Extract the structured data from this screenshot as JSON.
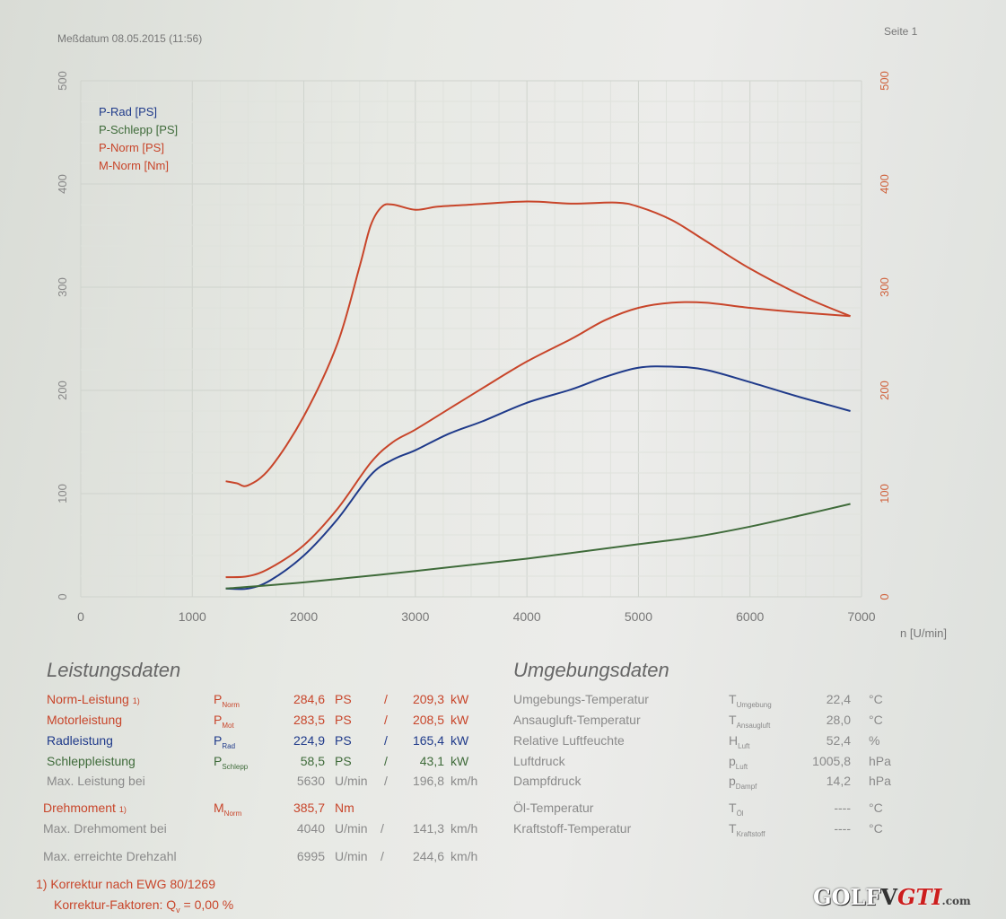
{
  "header": {
    "date_text": "Meßdatum  08.05.2015 (11:56)",
    "page_text": "Seite 1"
  },
  "chart_data": {
    "type": "line",
    "xlabel": "n [U/min]",
    "xlim": [
      0,
      7000
    ],
    "ylim_left": [
      0,
      500
    ],
    "ylim_right": [
      0,
      500
    ],
    "x_ticks": [
      0,
      1000,
      2000,
      3000,
      4000,
      5000,
      6000,
      7000
    ],
    "y_ticks_left": [
      0,
      100,
      200,
      300,
      400,
      500
    ],
    "y_ticks_right": [
      0,
      100,
      200,
      300,
      400,
      500
    ],
    "legend_position": "top-left",
    "series": [
      {
        "name": "P-Rad [PS]",
        "color": "#1f3a8a",
        "x": [
          1300,
          1500,
          1700,
          2000,
          2300,
          2600,
          2800,
          3000,
          3300,
          3600,
          4000,
          4400,
          4700,
          5000,
          5300,
          5600,
          6000,
          6400,
          6700,
          6900
        ],
        "y": [
          8,
          8,
          16,
          40,
          75,
          118,
          133,
          142,
          158,
          170,
          188,
          201,
          213,
          222,
          223,
          220,
          208,
          195,
          186,
          180
        ]
      },
      {
        "name": "P-Schlepp [PS]",
        "color": "#3f6b3a",
        "x": [
          1300,
          2000,
          3000,
          4000,
          5000,
          5500,
          6000,
          6500,
          6900
        ],
        "y": [
          8,
          14,
          25,
          37,
          51,
          58,
          68,
          80,
          90
        ]
      },
      {
        "name": "P-Norm [PS]",
        "color": "#c8452a",
        "x": [
          1300,
          1500,
          1700,
          2000,
          2300,
          2600,
          2800,
          3000,
          3300,
          3600,
          4000,
          4400,
          4700,
          5000,
          5300,
          5600,
          6000,
          6400,
          6900
        ],
        "y": [
          19,
          20,
          28,
          50,
          85,
          130,
          150,
          162,
          182,
          202,
          228,
          250,
          268,
          280,
          285,
          285,
          280,
          276,
          272
        ]
      },
      {
        "name": "M-Norm [Nm]",
        "color": "#c8452a",
        "x": [
          1300,
          1400,
          1500,
          1700,
          2000,
          2300,
          2500,
          2600,
          2700,
          2800,
          3000,
          3200,
          3500,
          4000,
          4400,
          4800,
          5000,
          5300,
          5600,
          6000,
          6500,
          6900
        ],
        "y": [
          112,
          110,
          108,
          125,
          175,
          245,
          320,
          360,
          378,
          380,
          375,
          378,
          380,
          383,
          381,
          382,
          378,
          365,
          345,
          318,
          290,
          272
        ]
      }
    ]
  },
  "leistung": {
    "title": "Leistungsdaten",
    "rows": [
      {
        "label": "Norm-Leistung",
        "note": "1)",
        "sym": "P",
        "sub": "Norm",
        "v1": "284,6",
        "u1": "PS",
        "sep": "/",
        "v2": "209,3",
        "u2": "kW"
      },
      {
        "label": "Motorleistung",
        "sym": "P",
        "sub": "Mot",
        "v1": "283,5",
        "u1": "PS",
        "sep": "/",
        "v2": "208,5",
        "u2": "kW"
      },
      {
        "label": "Radleistung",
        "sym": "P",
        "sub": "Rad",
        "v1": "224,9",
        "u1": "PS",
        "sep": "/",
        "v2": "165,4",
        "u2": "kW"
      },
      {
        "label": "Schleppleistung",
        "sym": "P",
        "sub": "Schlepp",
        "v1": "58,5",
        "u1": "PS",
        "sep": "/",
        "v2": "43,1",
        "u2": "kW"
      },
      {
        "label": "Max. Leistung bei",
        "v1": "5630",
        "u1": "U/min",
        "sep": "/",
        "v2": "196,8",
        "u2": "km/h"
      }
    ],
    "torque": {
      "label": "Drehmoment",
      "note": "1)",
      "sym": "M",
      "sub": "Norm",
      "v1": "385,7",
      "u1": "Nm"
    },
    "maxtorque": {
      "label": "Max. Drehmoment bei",
      "v1": "4040",
      "u1": "U/min",
      "sep": "/",
      "v2": "141,3",
      "u2": "km/h"
    },
    "maxrpm": {
      "label": "Max. erreichte Drehzahl",
      "v1": "6995",
      "u1": "U/min",
      "sep": "/",
      "v2": "244,6",
      "u2": "km/h"
    },
    "footnote1": "1) Korrektur nach EWG 80/1269",
    "footnote2_label": "Korrektur-Faktoren:",
    "footnote2_sym": "Q",
    "footnote2_sub": "v",
    "footnote2_value": "=   0,00 %"
  },
  "umgebung": {
    "title": "Umgebungsdaten",
    "rows": [
      {
        "label": "Umgebungs-Temperatur",
        "sym": "T",
        "sub": "Umgebung",
        "value": "22,4",
        "unit": "°C"
      },
      {
        "label": "Ansaugluft-Temperatur",
        "sym": "T",
        "sub": "Ansaugluft",
        "value": "28,0",
        "unit": "°C"
      },
      {
        "label": "Relative Luftfeuchte",
        "sym": "H",
        "sub": "Luft",
        "value": "52,4",
        "unit": "%"
      },
      {
        "label": "Luftdruck",
        "sym": "p",
        "sub": "Luft",
        "value": "1005,8",
        "unit": "hPa"
      },
      {
        "label": "Dampfdruck",
        "sym": "p",
        "sub": "Dampf",
        "value": "14,2",
        "unit": "hPa"
      },
      {
        "label": "Öl-Temperatur",
        "sym": "T",
        "sub": "Öl",
        "value": "----",
        "unit": "°C"
      },
      {
        "label": "Kraftstoff-Temperatur",
        "sym": "T",
        "sub": "Kraftstoff",
        "value": "----",
        "unit": "°C"
      }
    ]
  },
  "logo": {
    "left": "GOLF",
    "mid": "V",
    "gti": "GTI",
    "domain": ".com"
  }
}
